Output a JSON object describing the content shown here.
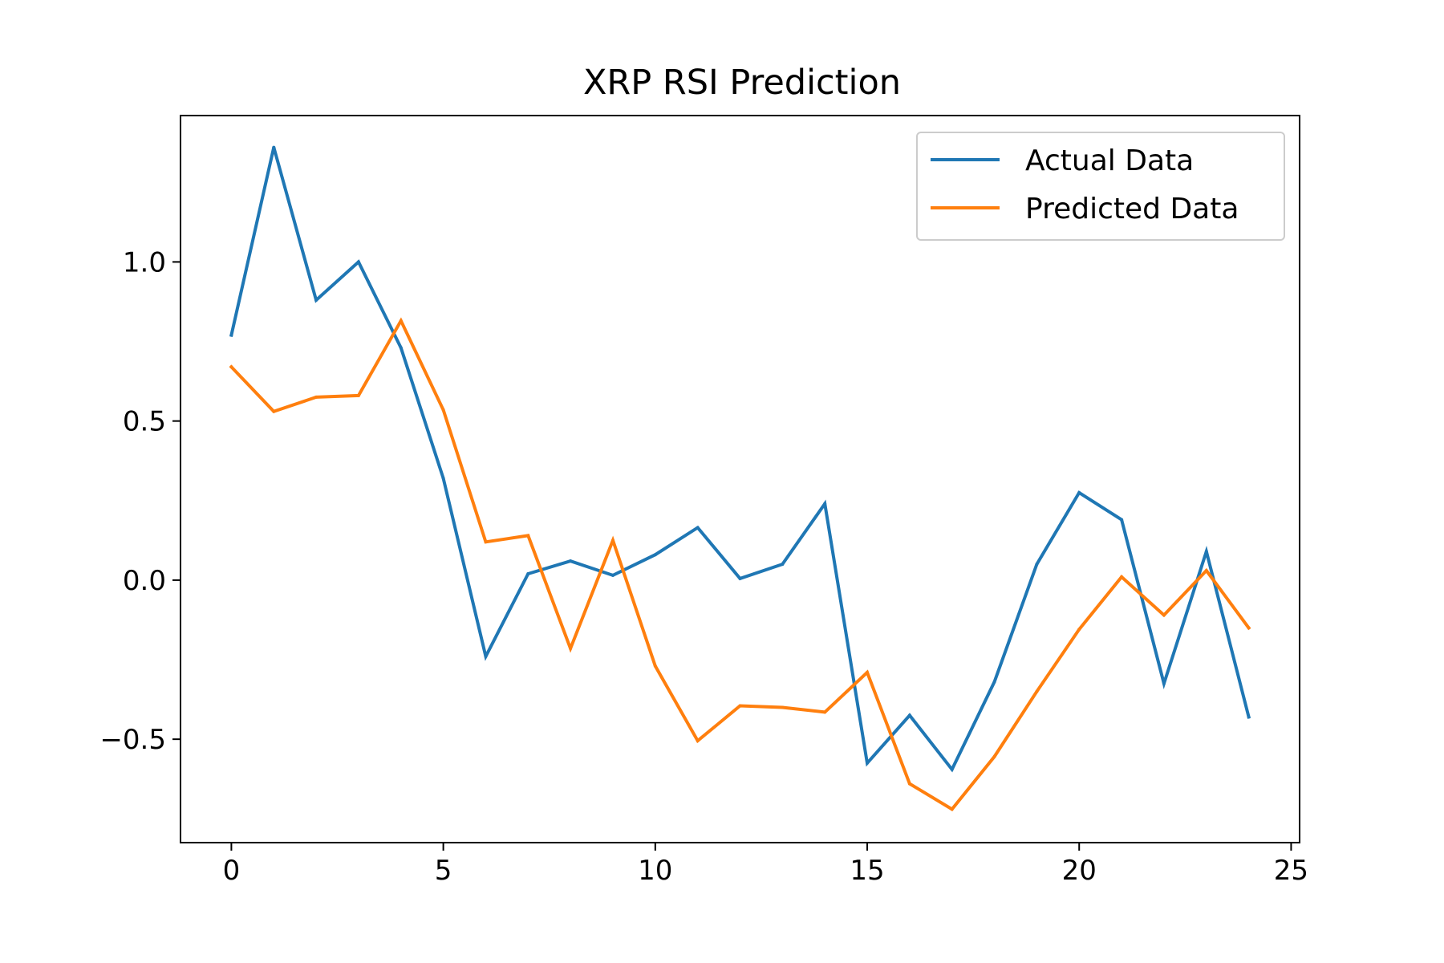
{
  "chart_data": {
    "type": "line",
    "title": "XRP RSI Prediction",
    "xlabel": "",
    "ylabel": "",
    "xlim": [
      -1.2,
      25.2
    ],
    "ylim": [
      -0.825,
      1.46
    ],
    "xticks": [
      0,
      5,
      10,
      15,
      20,
      25
    ],
    "xtick_labels": [
      "0",
      "5",
      "10",
      "15",
      "20",
      "25"
    ],
    "yticks": [
      -0.5,
      0.0,
      0.5,
      1.0
    ],
    "ytick_labels": [
      "−0.5",
      "0.0",
      "0.5",
      "1.0"
    ],
    "grid": false,
    "legend_position": "top-right",
    "x": [
      0,
      1,
      2,
      3,
      4,
      5,
      6,
      7,
      8,
      9,
      10,
      11,
      12,
      13,
      14,
      15,
      16,
      17,
      18,
      19,
      20,
      21,
      22,
      23,
      24
    ],
    "series": [
      {
        "name": "Actual Data",
        "color": "#1f77b4",
        "values": [
          0.77,
          1.36,
          0.88,
          1.0,
          0.73,
          0.32,
          -0.24,
          0.02,
          0.06,
          0.015,
          0.08,
          0.165,
          0.005,
          0.05,
          0.24,
          -0.575,
          -0.425,
          -0.595,
          -0.32,
          0.05,
          0.275,
          0.19,
          -0.325,
          0.09,
          -0.43
        ]
      },
      {
        "name": "Predicted Data",
        "color": "#ff7f0e",
        "values": [
          0.67,
          0.53,
          0.575,
          0.58,
          0.815,
          0.535,
          0.12,
          0.14,
          -0.215,
          0.125,
          -0.27,
          -0.505,
          -0.395,
          -0.4,
          -0.415,
          -0.29,
          -0.64,
          -0.72,
          -0.555,
          -0.35,
          -0.155,
          0.01,
          -0.11,
          0.03,
          -0.15
        ]
      }
    ]
  }
}
